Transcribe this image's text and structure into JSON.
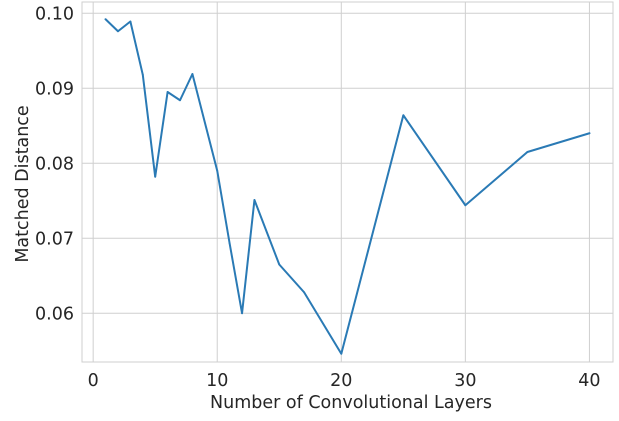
{
  "chart_data": {
    "type": "line",
    "title": "",
    "xlabel": "Number of Convolutional Layers",
    "ylabel": "Matched Distance",
    "xlim": [
      -0.9,
      41.9
    ],
    "ylim": [
      0.0535,
      0.1015
    ],
    "xticks": [
      0,
      10,
      20,
      30,
      40
    ],
    "xtick_labels": [
      "0",
      "10",
      "20",
      "30",
      "40"
    ],
    "yticks": [
      0.06,
      0.07,
      0.08,
      0.09,
      0.1
    ],
    "ytick_labels": [
      "0.06",
      "0.07",
      "0.08",
      "0.09",
      "0.10"
    ],
    "grid": true,
    "series": [
      {
        "color": "#2a7ab5",
        "x": [
          1,
          2,
          3,
          4,
          5,
          6,
          7,
          8,
          10,
          11,
          12,
          13,
          15,
          17,
          20,
          25,
          30,
          35,
          40
        ],
        "y": [
          0.0992,
          0.0976,
          0.0989,
          0.0918,
          0.0782,
          0.0895,
          0.0884,
          0.0919,
          0.079,
          0.0693,
          0.06,
          0.0751,
          0.0665,
          0.0628,
          0.0546,
          0.0864,
          0.0744,
          0.0815,
          0.084
        ]
      }
    ]
  }
}
